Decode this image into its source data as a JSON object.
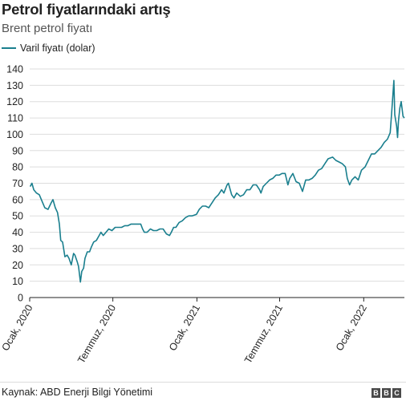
{
  "header": {
    "title": "Petrol fiyatlarındaki artış",
    "subtitle": "Brent petrol fiyatı"
  },
  "footer": {
    "source": "Kaynak: ABD Enerji Bilgi Yönetimi",
    "logo": [
      "B",
      "B",
      "C"
    ]
  },
  "colors": {
    "series": "#1a7f8e",
    "grid": "#dddddd",
    "axis": "#222222"
  },
  "chart_data": {
    "type": "line",
    "title": "Petrol fiyatlarındaki artış",
    "subtitle": "Brent petrol fiyatı",
    "xlabel": "",
    "ylabel": "",
    "ylim": [
      0,
      140
    ],
    "yticks": [
      0,
      10,
      20,
      30,
      40,
      50,
      60,
      70,
      80,
      90,
      100,
      110,
      120,
      130,
      140
    ],
    "xlim": [
      "2020-01-01",
      "2022-03-31"
    ],
    "xticks": [
      {
        "date": "2020-01-01",
        "label": "Ocak, 2020"
      },
      {
        "date": "2020-07-01",
        "label": "Temmuz, 2020"
      },
      {
        "date": "2021-01-01",
        "label": "Ocak, 2021"
      },
      {
        "date": "2021-07-01",
        "label": "Temmuz, 2021"
      },
      {
        "date": "2022-01-01",
        "label": "Ocak, 2022"
      }
    ],
    "grid": true,
    "legend": "top-left",
    "series": [
      {
        "name": "Varil fiyatı (dolar)",
        "points": [
          [
            "2020-01-02",
            68
          ],
          [
            "2020-01-06",
            70
          ],
          [
            "2020-01-10",
            66
          ],
          [
            "2020-01-16",
            64
          ],
          [
            "2020-01-22",
            63
          ],
          [
            "2020-01-28",
            59
          ],
          [
            "2020-02-03",
            55
          ],
          [
            "2020-02-10",
            54
          ],
          [
            "2020-02-17",
            58
          ],
          [
            "2020-02-21",
            60
          ],
          [
            "2020-02-26",
            55
          ],
          [
            "2020-03-02",
            52
          ],
          [
            "2020-03-06",
            45
          ],
          [
            "2020-03-09",
            35
          ],
          [
            "2020-03-13",
            34
          ],
          [
            "2020-03-18",
            25
          ],
          [
            "2020-03-23",
            26
          ],
          [
            "2020-03-27",
            24
          ],
          [
            "2020-04-01",
            20
          ],
          [
            "2020-04-06",
            27
          ],
          [
            "2020-04-09",
            26
          ],
          [
            "2020-04-14",
            22
          ],
          [
            "2020-04-17",
            19
          ],
          [
            "2020-04-21",
            9.5
          ],
          [
            "2020-04-24",
            16
          ],
          [
            "2020-04-28",
            18
          ],
          [
            "2020-05-01",
            24
          ],
          [
            "2020-05-06",
            28
          ],
          [
            "2020-05-11",
            28
          ],
          [
            "2020-05-15",
            31
          ],
          [
            "2020-05-20",
            34
          ],
          [
            "2020-05-26",
            35
          ],
          [
            "2020-06-01",
            38
          ],
          [
            "2020-06-05",
            40
          ],
          [
            "2020-06-10",
            38
          ],
          [
            "2020-06-16",
            40
          ],
          [
            "2020-06-22",
            42
          ],
          [
            "2020-06-29",
            41
          ],
          [
            "2020-07-06",
            43
          ],
          [
            "2020-07-13",
            43
          ],
          [
            "2020-07-20",
            43
          ],
          [
            "2020-07-27",
            44
          ],
          [
            "2020-08-03",
            44
          ],
          [
            "2020-08-10",
            45
          ],
          [
            "2020-08-17",
            45
          ],
          [
            "2020-08-24",
            45
          ],
          [
            "2020-08-31",
            45
          ],
          [
            "2020-09-04",
            42
          ],
          [
            "2020-09-08",
            40
          ],
          [
            "2020-09-14",
            40
          ],
          [
            "2020-09-21",
            42
          ],
          [
            "2020-09-28",
            41
          ],
          [
            "2020-10-05",
            41
          ],
          [
            "2020-10-12",
            42
          ],
          [
            "2020-10-19",
            42
          ],
          [
            "2020-10-26",
            39
          ],
          [
            "2020-11-02",
            38
          ],
          [
            "2020-11-06",
            40
          ],
          [
            "2020-11-11",
            43
          ],
          [
            "2020-11-16",
            43
          ],
          [
            "2020-11-23",
            46
          ],
          [
            "2020-11-30",
            47
          ],
          [
            "2020-12-07",
            49
          ],
          [
            "2020-12-14",
            50
          ],
          [
            "2020-12-21",
            50
          ],
          [
            "2020-12-31",
            51
          ],
          [
            "2021-01-06",
            54
          ],
          [
            "2021-01-13",
            56
          ],
          [
            "2021-01-20",
            56
          ],
          [
            "2021-01-27",
            55
          ],
          [
            "2021-02-03",
            58
          ],
          [
            "2021-02-10",
            61
          ],
          [
            "2021-02-17",
            63
          ],
          [
            "2021-02-24",
            66
          ],
          [
            "2021-03-01",
            64
          ],
          [
            "2021-03-08",
            69
          ],
          [
            "2021-03-11",
            70
          ],
          [
            "2021-03-18",
            63
          ],
          [
            "2021-03-23",
            61
          ],
          [
            "2021-03-29",
            64
          ],
          [
            "2021-04-06",
            62
          ],
          [
            "2021-04-13",
            63
          ],
          [
            "2021-04-20",
            66
          ],
          [
            "2021-04-27",
            66
          ],
          [
            "2021-05-04",
            69
          ],
          [
            "2021-05-11",
            69
          ],
          [
            "2021-05-18",
            66
          ],
          [
            "2021-05-21",
            64
          ],
          [
            "2021-05-26",
            68
          ],
          [
            "2021-06-02",
            70
          ],
          [
            "2021-06-09",
            72
          ],
          [
            "2021-06-16",
            73
          ],
          [
            "2021-06-23",
            75
          ],
          [
            "2021-06-30",
            75
          ],
          [
            "2021-07-06",
            76
          ],
          [
            "2021-07-13",
            76
          ],
          [
            "2021-07-19",
            69
          ],
          [
            "2021-07-23",
            73
          ],
          [
            "2021-07-30",
            76
          ],
          [
            "2021-08-06",
            71
          ],
          [
            "2021-08-13",
            70
          ],
          [
            "2021-08-20",
            65
          ],
          [
            "2021-08-27",
            72
          ],
          [
            "2021-09-03",
            72
          ],
          [
            "2021-09-10",
            73
          ],
          [
            "2021-09-17",
            75
          ],
          [
            "2021-09-24",
            78
          ],
          [
            "2021-10-01",
            79
          ],
          [
            "2021-10-08",
            82
          ],
          [
            "2021-10-15",
            85
          ],
          [
            "2021-10-25",
            86
          ],
          [
            "2021-11-01",
            84
          ],
          [
            "2021-11-08",
            83
          ],
          [
            "2021-11-15",
            82
          ],
          [
            "2021-11-22",
            80
          ],
          [
            "2021-11-26",
            73
          ],
          [
            "2021-12-01",
            69
          ],
          [
            "2021-12-06",
            72
          ],
          [
            "2021-12-13",
            74
          ],
          [
            "2021-12-20",
            72
          ],
          [
            "2021-12-27",
            78
          ],
          [
            "2022-01-04",
            80
          ],
          [
            "2022-01-11",
            84
          ],
          [
            "2022-01-18",
            88
          ],
          [
            "2022-01-25",
            88
          ],
          [
            "2022-02-01",
            90
          ],
          [
            "2022-02-08",
            92
          ],
          [
            "2022-02-15",
            95
          ],
          [
            "2022-02-22",
            97
          ],
          [
            "2022-02-28",
            101
          ],
          [
            "2022-03-03",
            113
          ],
          [
            "2022-03-08",
            133
          ],
          [
            "2022-03-10",
            112
          ],
          [
            "2022-03-14",
            105
          ],
          [
            "2022-03-16",
            98
          ],
          [
            "2022-03-18",
            108
          ],
          [
            "2022-03-21",
            116
          ],
          [
            "2022-03-24",
            120
          ],
          [
            "2022-03-28",
            111
          ],
          [
            "2022-03-31",
            110
          ]
        ]
      }
    ]
  }
}
